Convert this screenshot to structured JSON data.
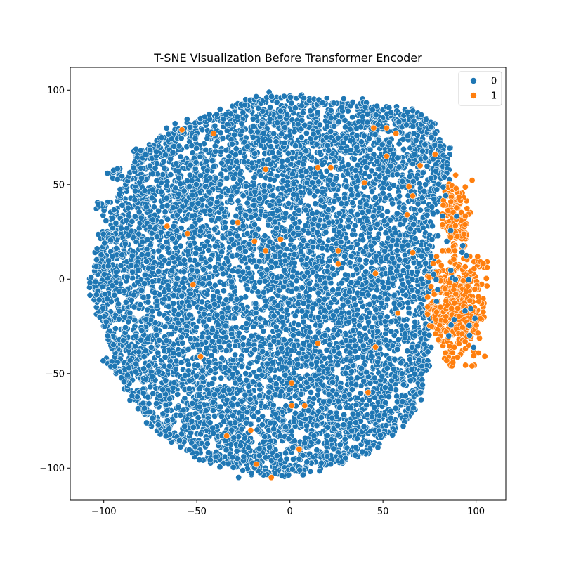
{
  "chart_data": {
    "type": "scatter",
    "title": "T-SNE Visualization Before Transformer Encoder",
    "xlabel": "",
    "ylabel": "",
    "xlim": [
      -118,
      116
    ],
    "ylim": [
      -117,
      112
    ],
    "x_ticks": [
      -100,
      -50,
      0,
      50,
      100
    ],
    "x_tick_labels": [
      "−100",
      "−50",
      "0",
      "50",
      "100"
    ],
    "y_ticks": [
      -100,
      -50,
      0,
      50,
      100
    ],
    "y_tick_labels": [
      "−100",
      "−50",
      "0",
      "50",
      "100"
    ],
    "grid": false,
    "legend_position": "top-right",
    "series": [
      {
        "name": "0",
        "color": "#1f77b4",
        "cluster": {
          "shape": "roughly circular dense cloud",
          "x_range": [
            -107,
            100
          ],
          "y_range": [
            -106,
            101
          ],
          "center": [
            -3,
            -3
          ],
          "approx_points": 18000
        },
        "boundary": [
          [
            -107,
            -2
          ],
          [
            -100,
            20
          ],
          [
            -92,
            45
          ],
          [
            -82,
            62
          ],
          [
            -70,
            75
          ],
          [
            -55,
            82
          ],
          [
            -35,
            88
          ],
          [
            -20,
            95
          ],
          [
            0,
            97
          ],
          [
            20,
            94
          ],
          [
            40,
            92
          ],
          [
            55,
            88
          ],
          [
            68,
            87
          ],
          [
            76,
            82
          ],
          [
            82,
            70
          ],
          [
            84,
            58
          ],
          [
            80,
            48
          ],
          [
            76,
            35
          ],
          [
            75,
            20
          ],
          [
            76,
            5
          ],
          [
            72,
            -10
          ],
          [
            74,
            -30
          ],
          [
            72,
            -50
          ],
          [
            66,
            -68
          ],
          [
            55,
            -80
          ],
          [
            40,
            -92
          ],
          [
            20,
            -98
          ],
          [
            0,
            -104
          ],
          [
            -20,
            -102
          ],
          [
            -40,
            -97
          ],
          [
            -58,
            -88
          ],
          [
            -72,
            -78
          ],
          [
            -82,
            -66
          ],
          [
            -90,
            -52
          ],
          [
            -96,
            -35
          ],
          [
            -102,
            -18
          ]
        ],
        "outlier_groups": [
          {
            "x": -101,
            "y": 38
          },
          {
            "x": -98,
            "y": 22
          },
          {
            "x": -96,
            "y": -45
          },
          {
            "x": -93,
            "y": 55
          },
          {
            "x": -82,
            "y": 65
          },
          {
            "x": -74,
            "y": 68
          }
        ]
      },
      {
        "name": "1",
        "color": "#ff7f0e",
        "clusters": [
          {
            "center": [
              90,
              -15
            ],
            "x_range": [
              74,
              106
            ],
            "y_range": [
              -46,
              12
            ],
            "approx_points": 900
          },
          {
            "center": [
              89,
              32
            ],
            "x_range": [
              82,
              98
            ],
            "y_range": [
              15,
              55
            ],
            "approx_points": 150
          }
        ],
        "scattered_points": [
          [
            -58,
            79
          ],
          [
            -41,
            77
          ],
          [
            -66,
            28
          ],
          [
            -55,
            24
          ],
          [
            -28,
            30
          ],
          [
            -13,
            58
          ],
          [
            -19,
            20
          ],
          [
            -13,
            15
          ],
          [
            -5,
            21
          ],
          [
            -52,
            -3
          ],
          [
            -48,
            -41
          ],
          [
            -21,
            -80
          ],
          [
            -34,
            -83
          ],
          [
            -18,
            -98
          ],
          [
            -10,
            -105
          ],
          [
            1,
            -55
          ],
          [
            1,
            -67
          ],
          [
            5,
            -90
          ],
          [
            8,
            -67
          ],
          [
            15,
            59
          ],
          [
            15,
            -34
          ],
          [
            22,
            59
          ],
          [
            26,
            8
          ],
          [
            26,
            15
          ],
          [
            40,
            51
          ],
          [
            42,
            -60
          ],
          [
            46,
            3
          ],
          [
            46,
            -36
          ],
          [
            45,
            80
          ],
          [
            52,
            65
          ],
          [
            52,
            80
          ],
          [
            57,
            77
          ],
          [
            63,
            34
          ],
          [
            64,
            49
          ],
          [
            66,
            44
          ],
          [
            66,
            14
          ],
          [
            58,
            -18
          ],
          [
            70,
            60
          ],
          [
            78,
            66
          ]
        ]
      }
    ]
  }
}
